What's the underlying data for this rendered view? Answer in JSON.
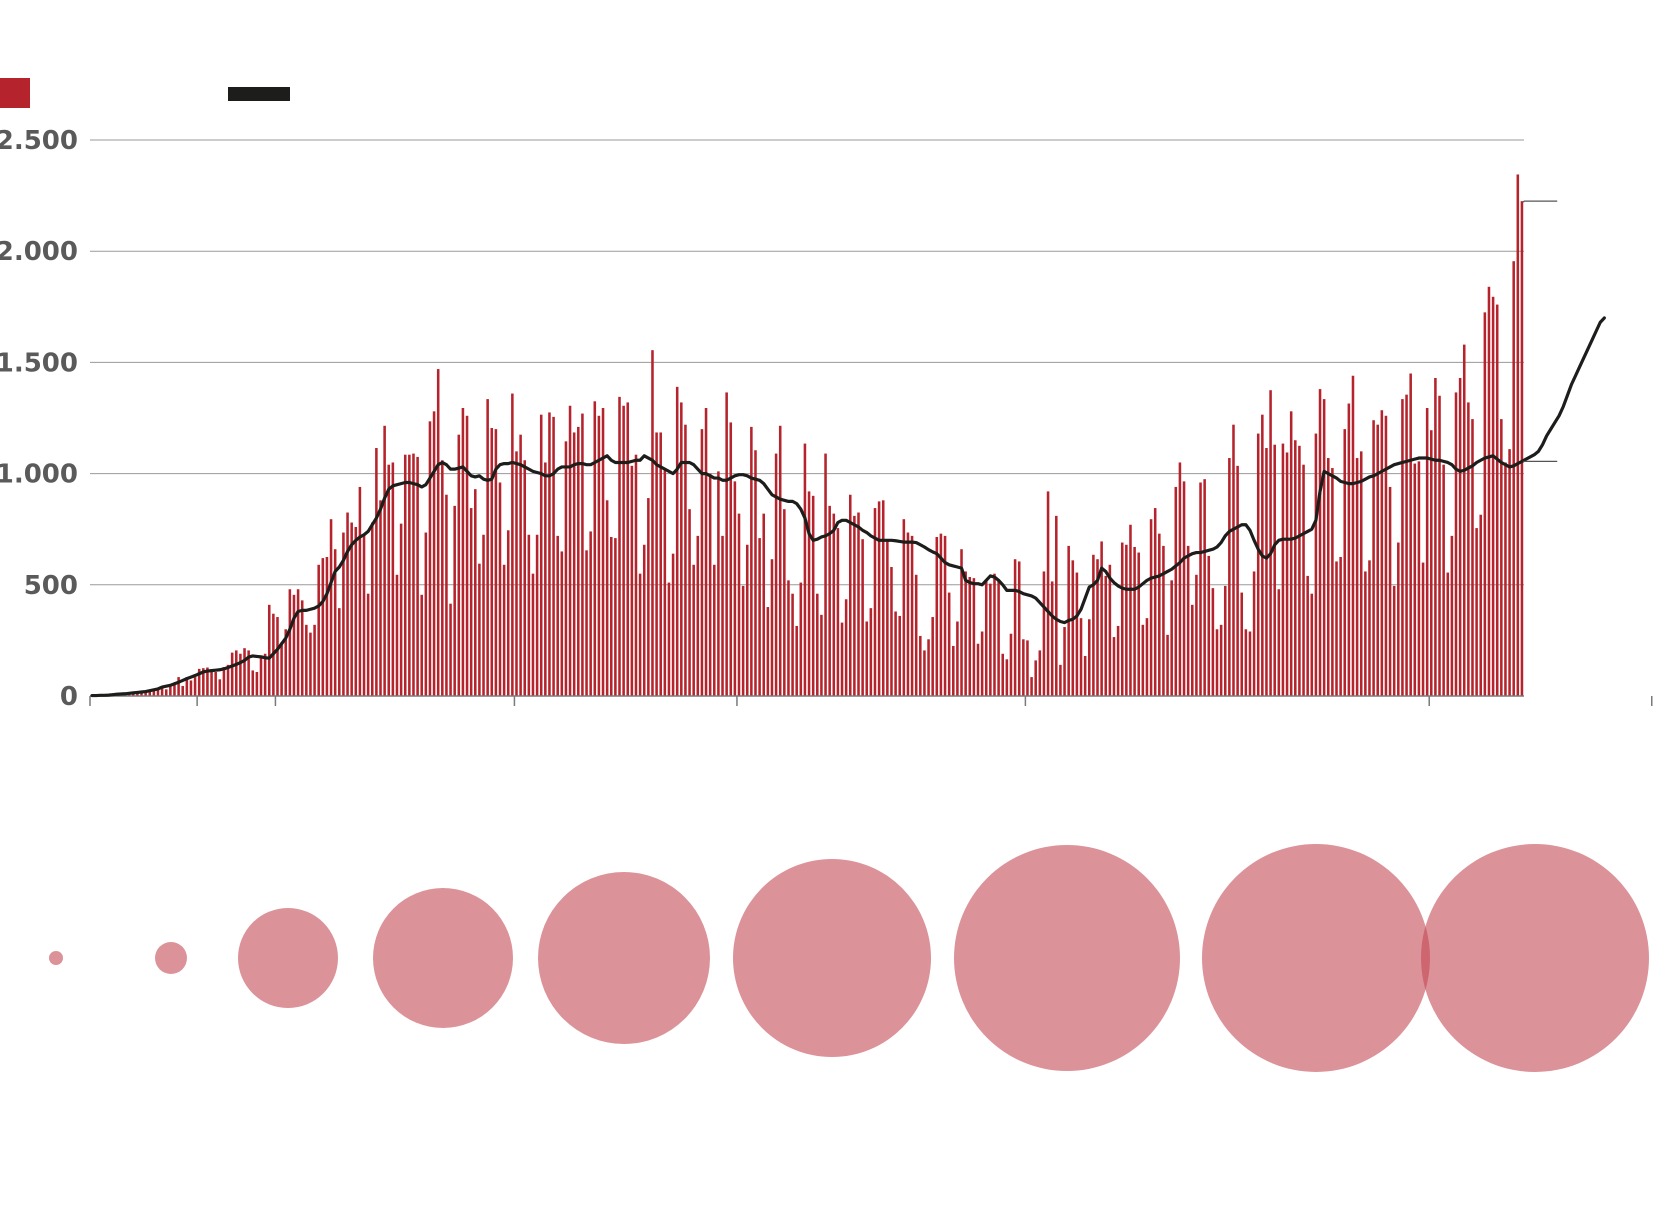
{
  "legend": {
    "cases_color": "#b5242c",
    "avg_color": "#1d1d1b"
  },
  "colors": {
    "bar": "#b5242c",
    "line": "#1d1d1b",
    "grid": "#9a9a9a",
    "bubble": "#c44a55",
    "tick_text": "#5a5a5a"
  },
  "chart_data": [
    {
      "type": "bar",
      "ylim": [
        0,
        2500
      ],
      "y_ticks": [
        {
          "value": 0,
          "label": "0"
        },
        {
          "value": 500,
          "label": "500"
        },
        {
          "value": 1000,
          "label": "1.000"
        },
        {
          "value": 1500,
          "label": "1.500"
        },
        {
          "value": 2000,
          "label": "2.000"
        },
        {
          "value": 2500,
          "label": "2.500"
        }
      ],
      "grid": true,
      "x_tick_positions": [
        0,
        26,
        45,
        103,
        157,
        227,
        325,
        379
      ],
      "series": [
        {
          "kind": "bars",
          "values": [
            2,
            2,
            3,
            3,
            4,
            5,
            6,
            8,
            9,
            11,
            13,
            14,
            15,
            17,
            20,
            25,
            28,
            35,
            30,
            42,
            52,
            85,
            45,
            85,
            70,
            85,
            122,
            125,
            128,
            110,
            108,
            75,
            130,
            140,
            195,
            205,
            190,
            215,
            205,
            115,
            108,
            180,
            190,
            410,
            370,
            355,
            240,
            300,
            480,
            455,
            480,
            430,
            320,
            285,
            320,
            590,
            620,
            625,
            795,
            660,
            395,
            735,
            825,
            780,
            760,
            940,
            730,
            460,
            780,
            1115,
            880,
            1215,
            1040,
            1050,
            545,
            775,
            1085,
            1085,
            1090,
            1075,
            455,
            735,
            1235,
            1280,
            1470,
            1060,
            905,
            415,
            855,
            1175,
            1295,
            1260,
            845,
            930,
            595,
            725,
            1335,
            1205,
            1200,
            960,
            590,
            745,
            1360,
            1100,
            1175,
            1060,
            725,
            550,
            725,
            1265,
            1050,
            1275,
            1255,
            720,
            650,
            1145,
            1305,
            1185,
            1210,
            1270,
            655,
            740,
            1325,
            1260,
            1295,
            880,
            715,
            710,
            1345,
            1305,
            1320,
            1035,
            1085,
            550,
            680,
            890,
            1555,
            1185,
            1185,
            1015,
            510,
            640,
            1390,
            1320,
            1220,
            840,
            590,
            720,
            1200,
            1295,
            1000,
            590,
            1010,
            720,
            1365,
            1230,
            965,
            820,
            495,
            680,
            1210,
            1105,
            710,
            820,
            400,
            615,
            1090,
            1215,
            840,
            520,
            460,
            315,
            510,
            1135,
            920,
            900,
            460,
            365,
            1090,
            855,
            820,
            755,
            330,
            435,
            905,
            810,
            825,
            705,
            335,
            395,
            845,
            875,
            880,
            695,
            580,
            380,
            360,
            795,
            735,
            720,
            545,
            270,
            205,
            255,
            355,
            715,
            730,
            720,
            465,
            225,
            335,
            660,
            560,
            535,
            530,
            235,
            290,
            520,
            505,
            550,
            525,
            190,
            165,
            280,
            615,
            605,
            255,
            250,
            85,
            160,
            205,
            560,
            920,
            515,
            810,
            140,
            310,
            675,
            610,
            555,
            350,
            180,
            345,
            635,
            615,
            695,
            540,
            590,
            265,
            315,
            690,
            680,
            770,
            670,
            645,
            320,
            350,
            795,
            845,
            730,
            675,
            275,
            520,
            940,
            1050,
            965,
            675,
            410,
            545,
            960,
            975,
            630,
            485,
            300,
            320,
            495,
            1070,
            1220,
            1035,
            465,
            300,
            290,
            560,
            1180,
            1265,
            1115,
            1375,
            1130,
            480,
            1135,
            1095,
            1280,
            1150,
            1125,
            1040,
            540,
            460,
            1180,
            1380,
            1335,
            1070,
            1025,
            605,
            625,
            1200,
            1315,
            1440,
            1070,
            1100,
            560,
            610,
            1240,
            1220,
            1285,
            1260,
            940,
            495,
            690,
            1335,
            1355,
            1450,
            1045,
            1055,
            600,
            1295,
            1195,
            1430,
            1350,
            1040,
            555,
            720,
            1365,
            1430,
            1580,
            1320,
            1245,
            755,
            815,
            1725,
            1840,
            1795,
            1760,
            1245,
            1050,
            1110,
            1955,
            2345,
            2225
          ]
        },
        {
          "kind": "line",
          "values": [
            2,
            2,
            3,
            3,
            4,
            6,
            8,
            9,
            10,
            12,
            14,
            16,
            18,
            20,
            24,
            28,
            32,
            40,
            44,
            48,
            55,
            62,
            70,
            78,
            85,
            92,
            100,
            108,
            112,
            114,
            116,
            118,
            122,
            128,
            135,
            142,
            150,
            160,
            175,
            180,
            178,
            176,
            172,
            170,
            190,
            210,
            235,
            260,
            300,
            350,
            380,
            385,
            385,
            390,
            395,
            405,
            425,
            460,
            510,
            560,
            580,
            610,
            650,
            680,
            700,
            715,
            725,
            740,
            770,
            800,
            840,
            890,
            930,
            945,
            950,
            955,
            960,
            960,
            955,
            950,
            940,
            950,
            980,
            1010,
            1040,
            1050,
            1040,
            1020,
            1020,
            1025,
            1030,
            1010,
            990,
            985,
            990,
            975,
            970,
            975,
            1020,
            1040,
            1045,
            1045,
            1050,
            1045,
            1040,
            1030,
            1020,
            1010,
            1005,
            1000,
            990,
            990,
            1000,
            1020,
            1030,
            1030,
            1030,
            1040,
            1045,
            1045,
            1040,
            1040,
            1050,
            1060,
            1070,
            1080,
            1060,
            1050,
            1050,
            1050,
            1050,
            1055,
            1060,
            1060,
            1080,
            1070,
            1060,
            1040,
            1030,
            1020,
            1010,
            1000,
            1020,
            1050,
            1050,
            1050,
            1040,
            1020,
            1000,
            1000,
            990,
            980,
            980,
            970,
            970,
            980,
            990,
            995,
            995,
            990,
            980,
            975,
            970,
            955,
            930,
            905,
            895,
            885,
            880,
            875,
            875,
            865,
            840,
            800,
            730,
            700,
            705,
            715,
            720,
            730,
            745,
            780,
            790,
            790,
            780,
            770,
            760,
            745,
            735,
            720,
            710,
            700,
            700,
            700,
            700,
            698,
            695,
            692,
            692,
            692,
            690,
            680,
            670,
            658,
            648,
            640,
            620,
            600,
            590,
            585,
            580,
            575,
            520,
            510,
            505,
            505,
            500,
            520,
            540,
            535,
            520,
            500,
            475,
            475,
            475,
            470,
            460,
            455,
            450,
            440,
            420,
            400,
            380,
            360,
            345,
            335,
            330,
            340,
            345,
            360,
            390,
            440,
            490,
            500,
            520,
            575,
            560,
            530,
            510,
            495,
            485,
            480,
            480,
            480,
            490,
            505,
            520,
            530,
            535,
            540,
            550,
            560,
            570,
            585,
            600,
            620,
            630,
            640,
            645,
            645,
            650,
            655,
            660,
            670,
            690,
            720,
            740,
            750,
            760,
            770,
            770,
            745,
            700,
            660,
            630,
            620,
            640,
            680,
            700,
            705,
            705,
            705,
            710,
            720,
            730,
            740,
            750,
            790,
            920,
            1010,
            1000,
            990,
            980,
            965,
            960,
            955,
            955,
            960,
            965,
            975,
            985,
            990,
            1000,
            1010,
            1020,
            1030,
            1040,
            1045,
            1050,
            1055,
            1060,
            1065,
            1070,
            1070,
            1070,
            1065,
            1060,
            1060,
            1055,
            1050,
            1040,
            1020,
            1010,
            1015,
            1025,
            1035,
            1050,
            1060,
            1070,
            1075,
            1080,
            1065,
            1050,
            1040,
            1030,
            1035,
            1045,
            1055,
            1065,
            1075,
            1085,
            1100,
            1130,
            1170,
            1200,
            1230,
            1260,
            1300,
            1350,
            1400,
            1440,
            1480,
            1520,
            1560,
            1600,
            1640,
            1680,
            1700
          ]
        }
      ]
    },
    {
      "type": "scatter",
      "bubble_sizes": [
        7,
        16,
        50,
        70,
        86,
        99,
        113,
        114,
        114
      ]
    }
  ]
}
